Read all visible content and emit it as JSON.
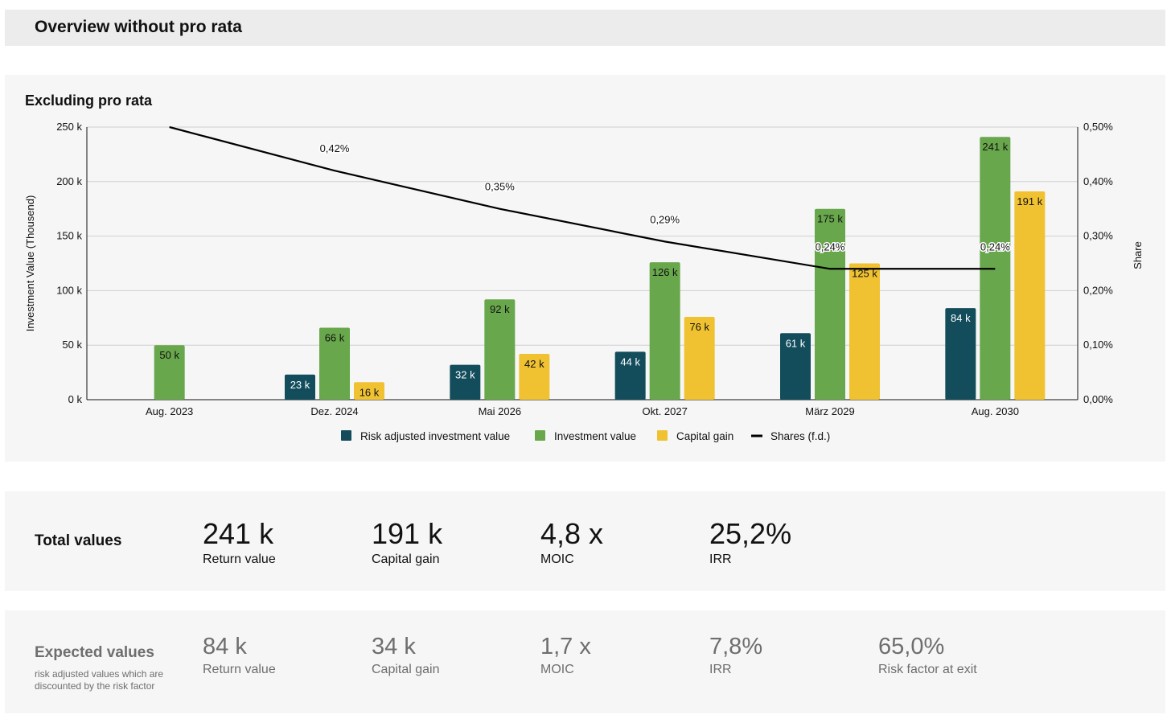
{
  "header": {
    "title": "Overview without pro rata"
  },
  "chart_panel": {
    "title": "Excluding pro rata"
  },
  "chart_data": {
    "type": "bar",
    "title": "Excluding pro rata",
    "categories": [
      "Aug. 2023",
      "Dez. 2024",
      "Mai 2026",
      "Okt. 2027",
      "März 2029",
      "Aug. 2030"
    ],
    "ylabel": "Investment Value (Thousend)",
    "y2label": "Share",
    "ylim": [
      0,
      250
    ],
    "y2lim": [
      0,
      0.5
    ],
    "yticks": [
      {
        "v": 0,
        "label": "0 k"
      },
      {
        "v": 50,
        "label": "50 k"
      },
      {
        "v": 100,
        "label": "100 k"
      },
      {
        "v": 150,
        "label": "150 k"
      },
      {
        "v": 200,
        "label": "200 k"
      },
      {
        "v": 250,
        "label": "250 k"
      }
    ],
    "y2ticks": [
      {
        "v": 0,
        "label": "0,00%"
      },
      {
        "v": 0.1,
        "label": "0,10%"
      },
      {
        "v": 0.2,
        "label": "0,20%"
      },
      {
        "v": 0.3,
        "label": "0,30%"
      },
      {
        "v": 0.4,
        "label": "0,40%"
      },
      {
        "v": 0.5,
        "label": "0,50%"
      }
    ],
    "grid": true,
    "legend_position": "bottom",
    "series": [
      {
        "name": "Risk adjusted investment value",
        "color": "#134d5c",
        "values": [
          null,
          23,
          32,
          44,
          61,
          84
        ],
        "labels": [
          null,
          "23 k",
          "32 k",
          "44 k",
          "61 k",
          "84 k"
        ]
      },
      {
        "name": "Investment value",
        "color": "#68a74b",
        "values": [
          50,
          66,
          92,
          126,
          175,
          241
        ],
        "labels": [
          "50 k",
          "66 k",
          "92 k",
          "126 k",
          "175 k",
          "241 k"
        ]
      },
      {
        "name": "Capital gain",
        "color": "#f0c232",
        "values": [
          null,
          16,
          42,
          76,
          125,
          191
        ],
        "labels": [
          null,
          "16 k",
          "42 k",
          "76 k",
          "125 k",
          "191 k"
        ]
      }
    ],
    "line_series": {
      "name": "Shares (f.d.)",
      "color": "#000000",
      "axis": "right",
      "values": [
        0.5,
        0.42,
        0.35,
        0.29,
        0.24,
        0.24
      ],
      "labels": [
        null,
        "0,42%",
        "0,35%",
        "0,29%",
        "0,24%",
        "0,24%"
      ]
    }
  },
  "totals": {
    "label": "Total values",
    "metrics": [
      {
        "value": "241 k",
        "label": "Return value"
      },
      {
        "value": "191 k",
        "label": "Capital gain"
      },
      {
        "value": "4,8 x",
        "label": "MOIC"
      },
      {
        "value": "25,2%",
        "label": "IRR"
      }
    ]
  },
  "expected": {
    "label": "Expected values",
    "description": "risk adjusted values which are discounted by the risk factor",
    "metrics": [
      {
        "value": "84 k",
        "label": "Return value"
      },
      {
        "value": "34 k",
        "label": "Capital gain"
      },
      {
        "value": "1,7 x",
        "label": "MOIC"
      },
      {
        "value": "7,8%",
        "label": "IRR"
      },
      {
        "value": "65,0%",
        "label": "Risk factor at exit"
      }
    ]
  }
}
